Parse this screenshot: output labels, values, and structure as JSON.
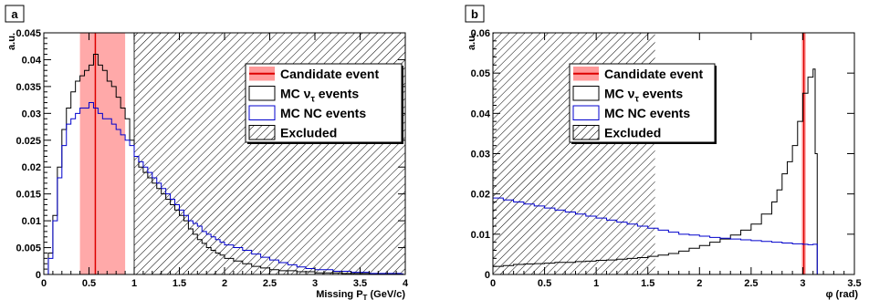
{
  "chart_data": [
    {
      "type": "line",
      "panel_label": "a",
      "xlabel": "Missing P",
      "xlabel_sub": "T",
      "xlabel_unit": " (GeV/c)",
      "ylabel": "a.u.",
      "xlim": [
        0,
        4
      ],
      "ylim": [
        0,
        0.045
      ],
      "xticks": [
        0,
        0.5,
        1,
        1.5,
        2,
        2.5,
        3,
        3.5,
        4
      ],
      "yticks": [
        0,
        0.005,
        0.01,
        0.015,
        0.02,
        0.025,
        0.03,
        0.035,
        0.04,
        0.045
      ],
      "xtick_labels": [
        "0",
        "0.5",
        "1",
        "1.5",
        "2",
        "2.5",
        "3",
        "3.5",
        "4"
      ],
      "ytick_labels": [
        "0",
        "0.005",
        "0.01",
        "0.015",
        "0.02",
        "0.025",
        "0.03",
        "0.035",
        "0.04",
        "0.045"
      ],
      "candidate": {
        "value": 0.57,
        "band": [
          0.4,
          0.9
        ]
      },
      "excluded_region": [
        1.0,
        4.0
      ],
      "legend": {
        "placement": "top-right",
        "entries": [
          {
            "key": "candidate",
            "label": "Candidate event"
          },
          {
            "key": "mc_tau",
            "label": "MC ν",
            "sub": "τ",
            "suffix": " events"
          },
          {
            "key": "mc_nc",
            "label": "MC NC events"
          },
          {
            "key": "excluded",
            "label": "Excluded"
          }
        ]
      },
      "series": [
        {
          "key": "mc_tau",
          "color": "#000000",
          "points": [
            [
              0.0,
              0
            ],
            [
              0.05,
              0.004
            ],
            [
              0.1,
              0.011
            ],
            [
              0.15,
              0.02
            ],
            [
              0.2,
              0.027
            ],
            [
              0.25,
              0.031
            ],
            [
              0.3,
              0.034
            ],
            [
              0.35,
              0.036
            ],
            [
              0.4,
              0.037
            ],
            [
              0.45,
              0.038
            ],
            [
              0.5,
              0.039
            ],
            [
              0.55,
              0.041
            ],
            [
              0.6,
              0.039
            ],
            [
              0.65,
              0.038
            ],
            [
              0.7,
              0.036
            ],
            [
              0.75,
              0.035
            ],
            [
              0.8,
              0.033
            ],
            [
              0.85,
              0.031
            ],
            [
              0.9,
              0.029
            ],
            [
              0.95,
              0.025
            ],
            [
              1.0,
              0.022
            ],
            [
              1.05,
              0.02
            ],
            [
              1.1,
              0.019
            ],
            [
              1.15,
              0.018
            ],
            [
              1.2,
              0.017
            ],
            [
              1.25,
              0.016
            ],
            [
              1.3,
              0.015
            ],
            [
              1.35,
              0.014
            ],
            [
              1.4,
              0.013
            ],
            [
              1.45,
              0.012
            ],
            [
              1.5,
              0.011
            ],
            [
              1.55,
              0.01
            ],
            [
              1.6,
              0.0085
            ],
            [
              1.65,
              0.0075
            ],
            [
              1.7,
              0.0065
            ],
            [
              1.75,
              0.0058
            ],
            [
              1.8,
              0.005
            ],
            [
              1.85,
              0.0045
            ],
            [
              1.9,
              0.004
            ],
            [
              1.95,
              0.0036
            ],
            [
              2.0,
              0.003
            ],
            [
              2.1,
              0.0025
            ],
            [
              2.2,
              0.002
            ],
            [
              2.3,
              0.0015
            ],
            [
              2.4,
              0.0012
            ],
            [
              2.5,
              0.0009
            ],
            [
              2.6,
              0.0007
            ],
            [
              2.8,
              0.0005
            ],
            [
              3.0,
              0.0003
            ],
            [
              3.3,
              0.0002
            ],
            [
              3.6,
              0.0001
            ],
            [
              3.95,
              0.0001
            ]
          ]
        },
        {
          "key": "mc_nc",
          "color": "#0000cc",
          "points": [
            [
              0.0,
              0
            ],
            [
              0.05,
              0.003
            ],
            [
              0.1,
              0.01
            ],
            [
              0.15,
              0.018
            ],
            [
              0.2,
              0.024
            ],
            [
              0.25,
              0.028
            ],
            [
              0.3,
              0.029
            ],
            [
              0.35,
              0.03
            ],
            [
              0.4,
              0.031
            ],
            [
              0.45,
              0.031
            ],
            [
              0.5,
              0.032
            ],
            [
              0.55,
              0.031
            ],
            [
              0.6,
              0.03
            ],
            [
              0.65,
              0.029
            ],
            [
              0.7,
              0.029
            ],
            [
              0.75,
              0.028
            ],
            [
              0.8,
              0.027
            ],
            [
              0.85,
              0.026
            ],
            [
              0.9,
              0.025
            ],
            [
              0.95,
              0.024
            ],
            [
              1.0,
              0.022
            ],
            [
              1.05,
              0.021
            ],
            [
              1.1,
              0.02
            ],
            [
              1.15,
              0.019
            ],
            [
              1.2,
              0.018
            ],
            [
              1.25,
              0.017
            ],
            [
              1.3,
              0.016
            ],
            [
              1.35,
              0.015
            ],
            [
              1.4,
              0.014
            ],
            [
              1.45,
              0.013
            ],
            [
              1.5,
              0.012
            ],
            [
              1.55,
              0.011
            ],
            [
              1.6,
              0.01
            ],
            [
              1.65,
              0.0095
            ],
            [
              1.7,
              0.009
            ],
            [
              1.75,
              0.008
            ],
            [
              1.8,
              0.0075
            ],
            [
              1.85,
              0.007
            ],
            [
              1.9,
              0.0065
            ],
            [
              1.95,
              0.006
            ],
            [
              2.0,
              0.0055
            ],
            [
              2.1,
              0.005
            ],
            [
              2.2,
              0.0045
            ],
            [
              2.3,
              0.0038
            ],
            [
              2.4,
              0.0032
            ],
            [
              2.5,
              0.0027
            ],
            [
              2.6,
              0.0022
            ],
            [
              2.7,
              0.0018
            ],
            [
              2.8,
              0.0014
            ],
            [
              2.9,
              0.0011
            ],
            [
              3.0,
              0.0009
            ],
            [
              3.2,
              0.0006
            ],
            [
              3.4,
              0.0004
            ],
            [
              3.6,
              0.0002
            ],
            [
              3.95,
              0.0001
            ]
          ]
        }
      ]
    },
    {
      "type": "line",
      "panel_label": "b",
      "xlabel": "φ (rad)",
      "ylabel": "a.u.",
      "xlim": [
        0,
        3.5
      ],
      "ylim": [
        0,
        0.06
      ],
      "xticks": [
        0,
        0.5,
        1,
        1.5,
        2,
        2.5,
        3,
        3.5
      ],
      "yticks": [
        0,
        0.01,
        0.02,
        0.03,
        0.04,
        0.05,
        0.06
      ],
      "xtick_labels": [
        "0",
        "0.5",
        "1",
        "1.5",
        "2",
        "2.5",
        "3",
        "3.5"
      ],
      "ytick_labels": [
        "0",
        "0.01",
        "0.02",
        "0.03",
        "0.04",
        "0.05",
        "0.06"
      ],
      "candidate": {
        "value": 3.01,
        "band": [
          2.99,
          3.03
        ]
      },
      "excluded_region": [
        0,
        1.57
      ],
      "legend": {
        "placement": "top-right",
        "entries": [
          {
            "key": "candidate",
            "label": "Candidate event"
          },
          {
            "key": "mc_tau",
            "label": "MC ν",
            "sub": "τ",
            "suffix": " events"
          },
          {
            "key": "mc_nc",
            "label": "MC NC events"
          },
          {
            "key": "excluded",
            "label": "Excluded"
          }
        ]
      },
      "series": [
        {
          "key": "mc_tau",
          "color": "#000000",
          "points": [
            [
              0.0,
              0.002
            ],
            [
              0.1,
              0.0022
            ],
            [
              0.2,
              0.0025
            ],
            [
              0.3,
              0.0026
            ],
            [
              0.4,
              0.0027
            ],
            [
              0.5,
              0.0028
            ],
            [
              0.6,
              0.003
            ],
            [
              0.7,
              0.003
            ],
            [
              0.8,
              0.0032
            ],
            [
              0.9,
              0.0033
            ],
            [
              1.0,
              0.0035
            ],
            [
              1.1,
              0.0036
            ],
            [
              1.2,
              0.0038
            ],
            [
              1.3,
              0.004
            ],
            [
              1.4,
              0.0042
            ],
            [
              1.5,
              0.0045
            ],
            [
              1.6,
              0.0048
            ],
            [
              1.7,
              0.0052
            ],
            [
              1.8,
              0.0058
            ],
            [
              1.9,
              0.0065
            ],
            [
              2.0,
              0.0072
            ],
            [
              2.1,
              0.008
            ],
            [
              2.2,
              0.0088
            ],
            [
              2.3,
              0.0098
            ],
            [
              2.4,
              0.011
            ],
            [
              2.5,
              0.0125
            ],
            [
              2.6,
              0.015
            ],
            [
              2.7,
              0.018
            ],
            [
              2.75,
              0.021
            ],
            [
              2.8,
              0.025
            ],
            [
              2.85,
              0.028
            ],
            [
              2.9,
              0.032
            ],
            [
              2.95,
              0.038
            ],
            [
              3.0,
              0.045
            ],
            [
              3.05,
              0.049
            ],
            [
              3.1,
              0.051
            ],
            [
              3.12,
              0.03
            ],
            [
              3.14,
              0.0
            ]
          ]
        },
        {
          "key": "mc_nc",
          "color": "#0000cc",
          "points": [
            [
              0.0,
              0.019
            ],
            [
              0.1,
              0.0185
            ],
            [
              0.2,
              0.018
            ],
            [
              0.3,
              0.0175
            ],
            [
              0.4,
              0.017
            ],
            [
              0.5,
              0.0165
            ],
            [
              0.6,
              0.016
            ],
            [
              0.7,
              0.0155
            ],
            [
              0.8,
              0.015
            ],
            [
              0.9,
              0.0145
            ],
            [
              1.0,
              0.014
            ],
            [
              1.1,
              0.0135
            ],
            [
              1.2,
              0.013
            ],
            [
              1.3,
              0.0125
            ],
            [
              1.4,
              0.012
            ],
            [
              1.5,
              0.0115
            ],
            [
              1.6,
              0.011
            ],
            [
              1.7,
              0.0105
            ],
            [
              1.8,
              0.01
            ],
            [
              1.9,
              0.0098
            ],
            [
              2.0,
              0.0095
            ],
            [
              2.1,
              0.0092
            ],
            [
              2.2,
              0.009
            ],
            [
              2.3,
              0.0088
            ],
            [
              2.4,
              0.0086
            ],
            [
              2.5,
              0.0084
            ],
            [
              2.6,
              0.0082
            ],
            [
              2.7,
              0.008
            ],
            [
              2.8,
              0.0078
            ],
            [
              2.9,
              0.0076
            ],
            [
              3.0,
              0.0075
            ],
            [
              3.05,
              0.0074
            ],
            [
              3.1,
              0.0075
            ],
            [
              3.14,
              0.0
            ]
          ]
        }
      ]
    }
  ]
}
